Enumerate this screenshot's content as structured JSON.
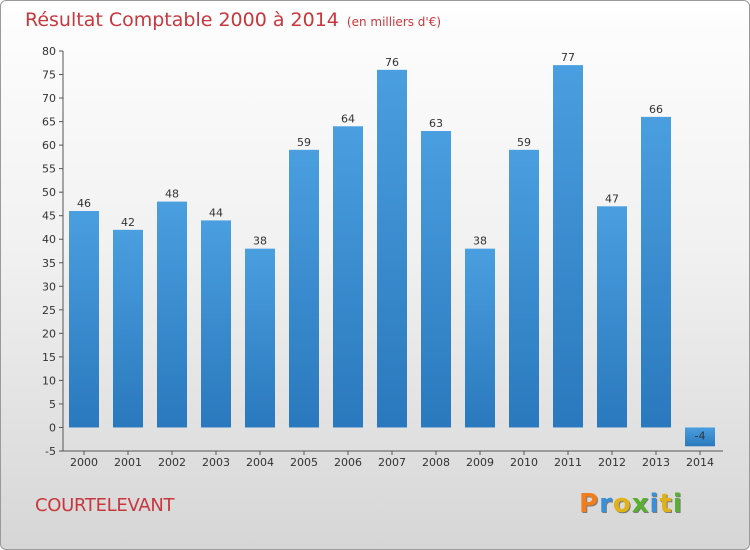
{
  "chart_data": {
    "type": "bar",
    "title": "Résultat Comptable 2000 à 2014",
    "subtitle": "(en milliers d'€)",
    "xlabel": "",
    "ylabel": "",
    "categories": [
      "2000",
      "2001",
      "2002",
      "2003",
      "2004",
      "2005",
      "2006",
      "2007",
      "2008",
      "2009",
      "2010",
      "2011",
      "2012",
      "2013",
      "2014"
    ],
    "values": [
      46,
      42,
      48,
      44,
      38,
      59,
      64,
      76,
      63,
      38,
      59,
      77,
      47,
      66,
      -4
    ],
    "data_labels": [
      "46",
      "42",
      "48",
      "44",
      "38",
      "59",
      "64",
      "76",
      "63",
      "38",
      "59",
      "77",
      "47",
      "66",
      "-4"
    ],
    "ylim": [
      -5,
      80
    ],
    "yticks": [
      -5,
      0,
      5,
      10,
      15,
      20,
      25,
      30,
      35,
      40,
      45,
      50,
      55,
      60,
      65,
      70,
      75,
      80
    ],
    "grid": false,
    "bar_color": "#4a9fe0",
    "bar_color_dark": "#2a78bd"
  },
  "footer": {
    "commune": "COURTELEVANT",
    "brand_letters": [
      "P",
      "r",
      "o",
      "x",
      "i",
      "t",
      "i"
    ],
    "brand_colors": [
      "#f07d1e",
      "#3a8fd9",
      "#e0b21a",
      "#58b02f",
      "#3a8fd9",
      "#e0b21a",
      "#58b02f"
    ]
  },
  "colors": {
    "title": "#c8373d",
    "axis": "#555555"
  }
}
